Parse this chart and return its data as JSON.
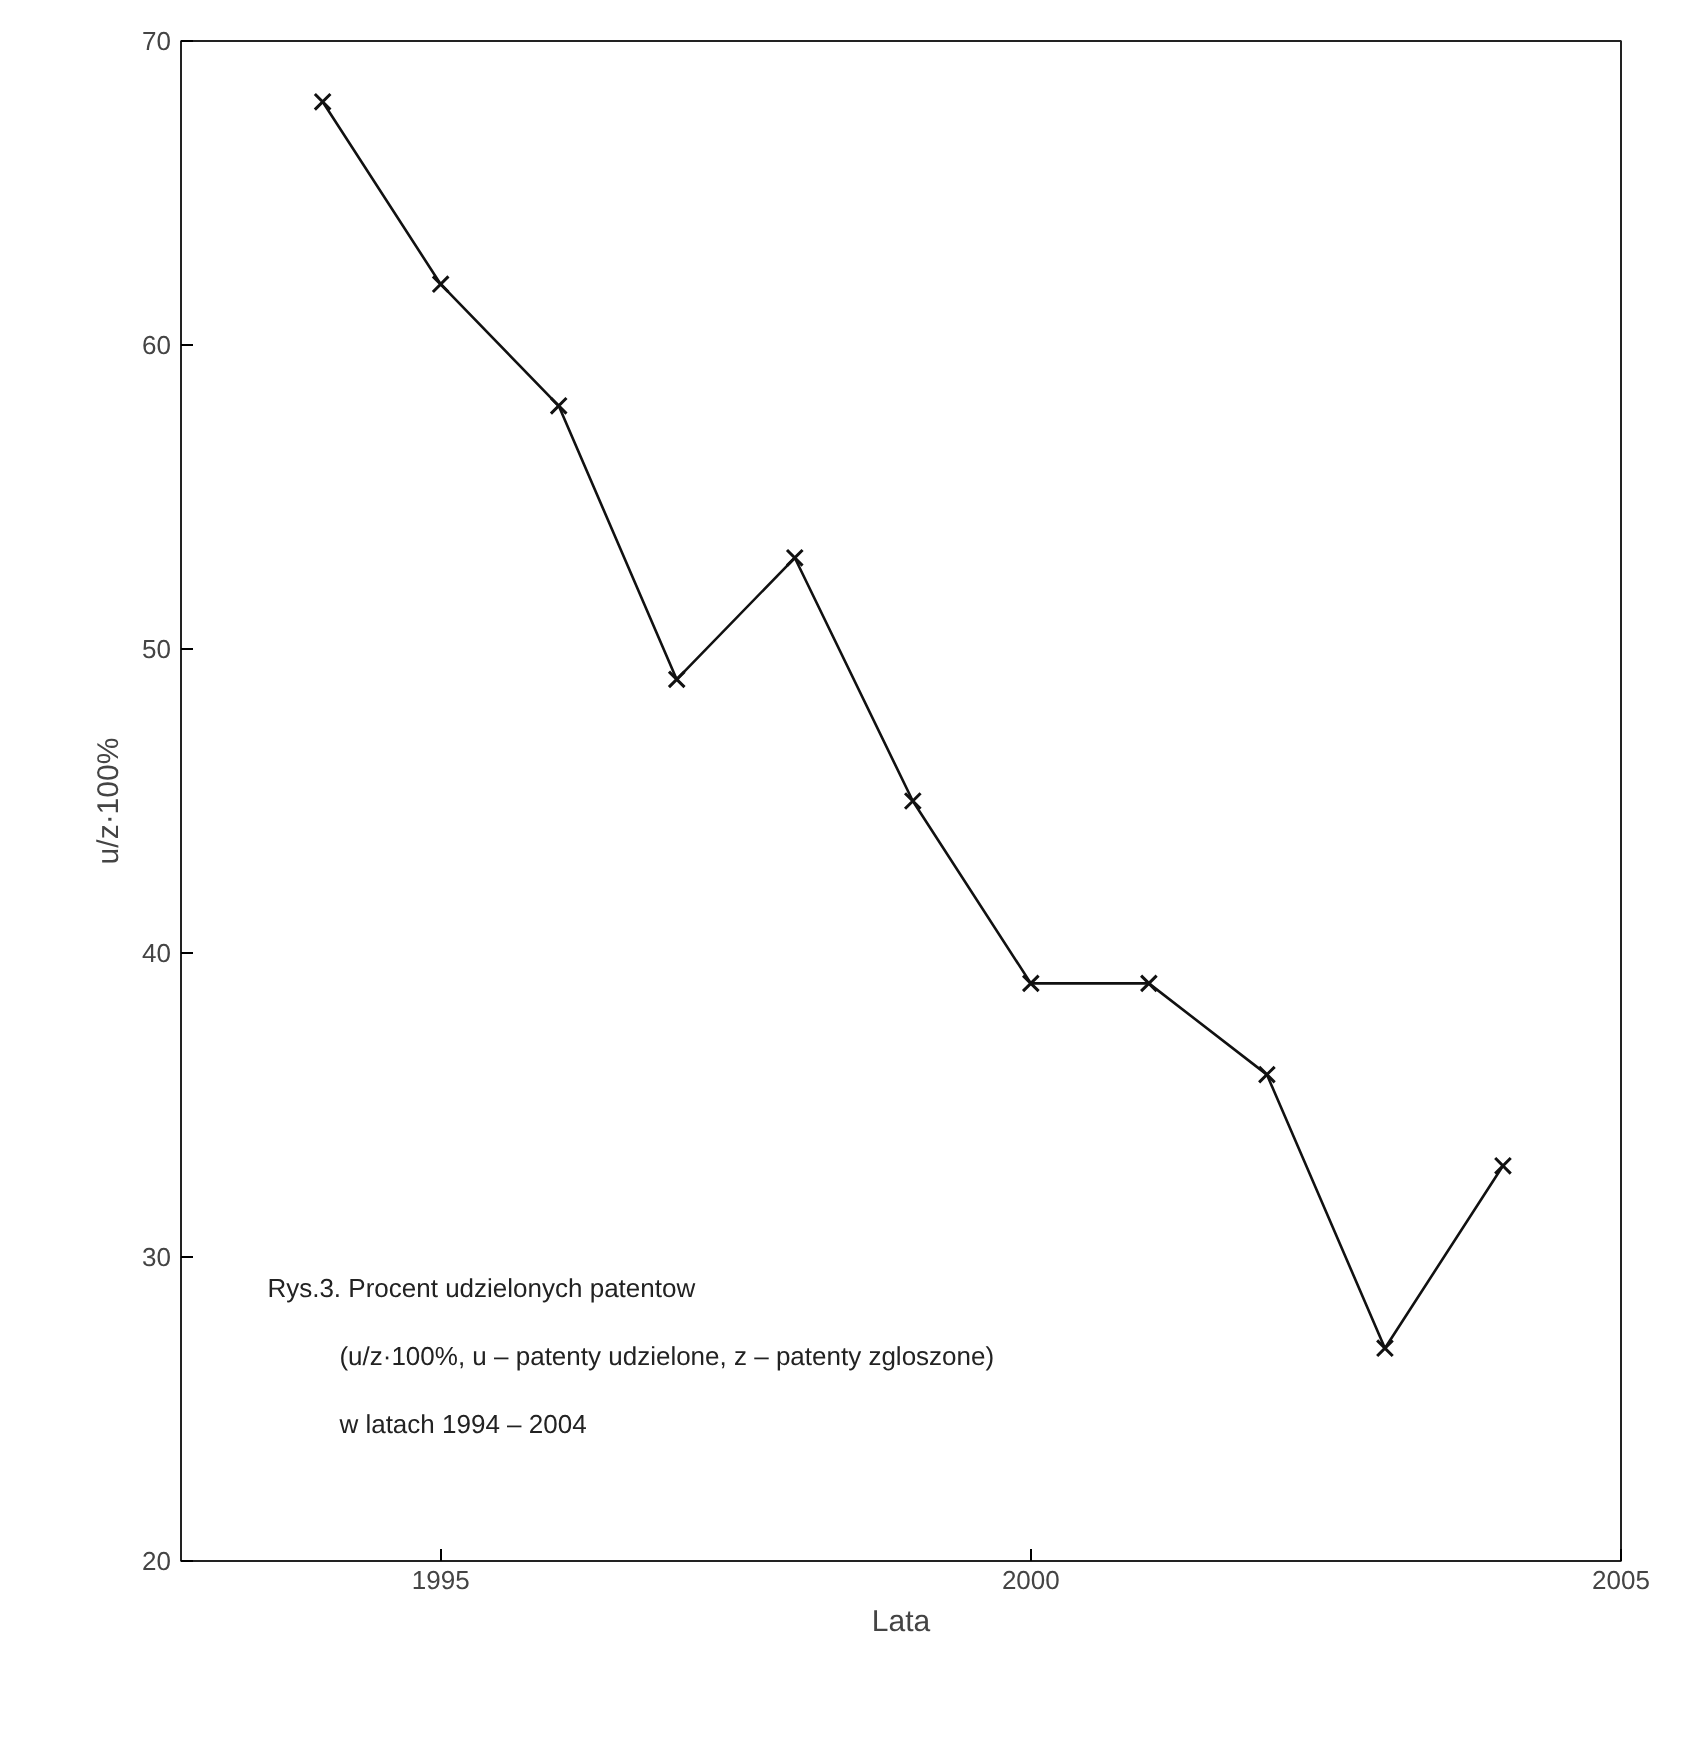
{
  "chart_data": {
    "type": "line",
    "xlabel": "Lata",
    "ylabel": "u/z·100%",
    "x": [
      1994,
      1995,
      1996,
      1997,
      1998,
      1999,
      2000,
      2001,
      2002,
      2003,
      2004
    ],
    "series": [
      {
        "color": "#111111",
        "values": [
          68,
          62,
          58,
          49,
          53,
          45,
          39,
          39,
          36,
          27,
          33
        ]
      }
    ],
    "xlim": [
      1992.8,
      2005
    ],
    "xticks": [
      1995,
      2000,
      2005
    ],
    "ylim": [
      20,
      70
    ],
    "yticks": [
      20,
      30,
      40,
      50,
      60,
      70
    ],
    "marker": "cross",
    "line_style": "solid",
    "annotations": [
      "Rys.3. Procent udzielonych patentow",
      "(u/z·100%, u – patenty udzielone, z – patenty zgloszone)",
      "w latach 1994 – 2004"
    ]
  }
}
